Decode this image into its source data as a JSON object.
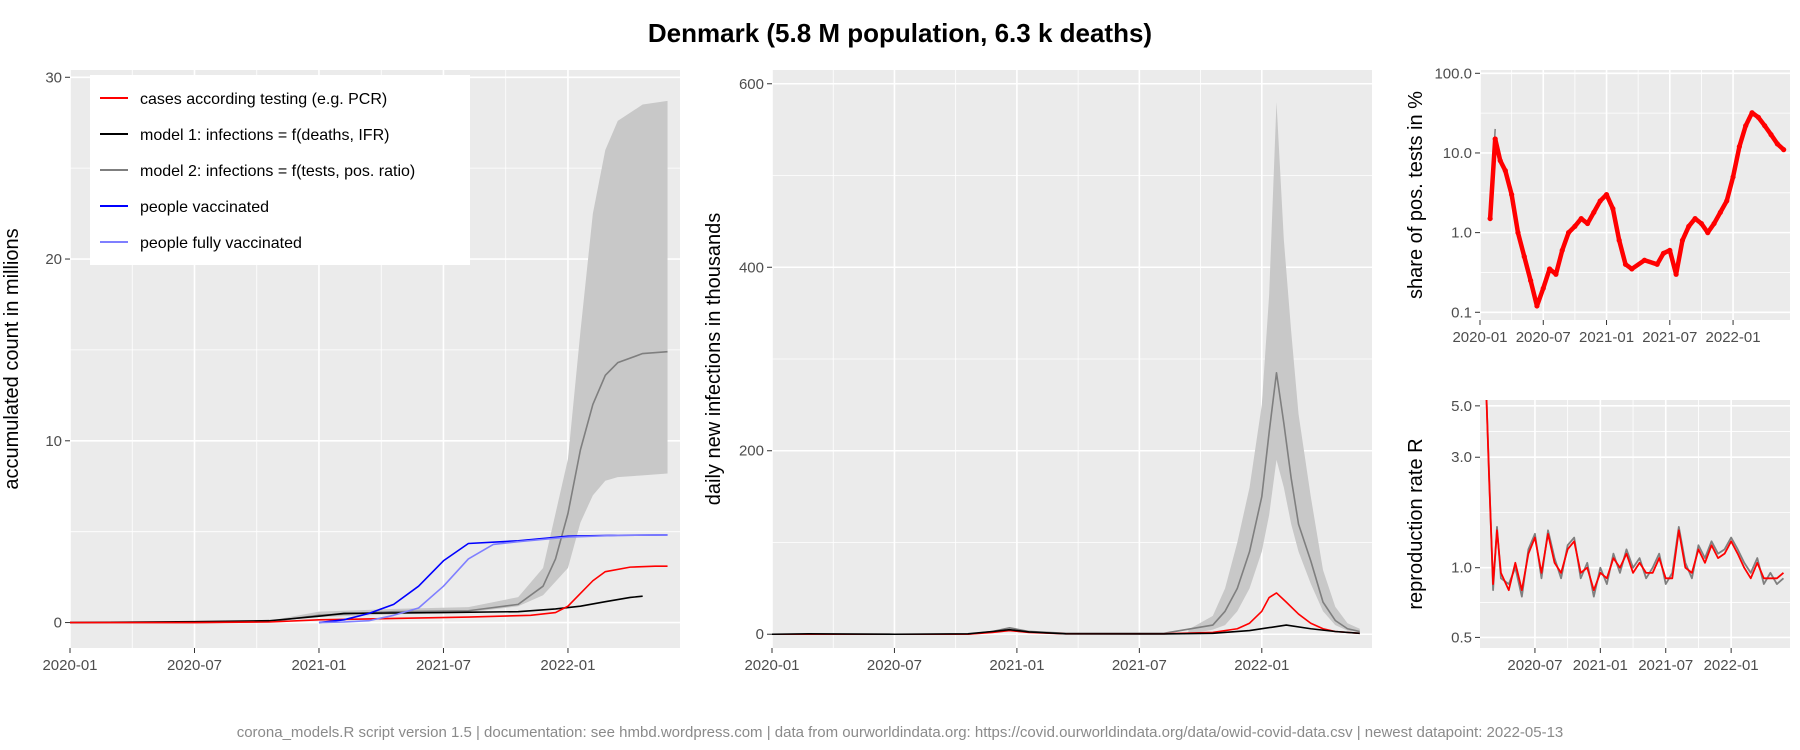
{
  "title": "Denmark (5.8 M population, 6.3 k deaths)",
  "caption": "corona_models.R script version 1.5 | documentation: see hmbd.wordpress.com | data from ourworldindata.org: https://covid.ourworldindata.org/data/owid-covid-data.csv | newest datapoint: 2022-05-13",
  "colors": {
    "panel_bg": "#EBEBEB",
    "grid": "#FFFFFF",
    "cases": "#FF0000",
    "model1": "#000000",
    "model2": "#7F7F7F",
    "model2_band": "#C8C8C8",
    "vaccinated": "#0000FF",
    "fully_vaccinated": "#7F7FFF"
  },
  "chart_data": [
    {
      "type": "line",
      "ylabel": "accumulated count in millions",
      "xlabel": "",
      "x_ticks": [
        "2020-01",
        "2020-07",
        "2021-01",
        "2021-07",
        "2022-01"
      ],
      "y_ticks": [
        "0",
        "10",
        "20",
        "30"
      ],
      "xlim": [
        2020.0,
        2022.45
      ],
      "ylim": [
        -1.4,
        30.4
      ],
      "legend": [
        {
          "key": "cases",
          "label": "cases according testing (e.g. PCR)"
        },
        {
          "key": "model1",
          "label": "model 1: infections = f(deaths, IFR)"
        },
        {
          "key": "model2",
          "label": "model 2: infections = f(tests, pos. ratio)"
        },
        {
          "key": "vaccinated",
          "label": "people vaccinated"
        },
        {
          "key": "fully_vaccinated",
          "label": "people fully vaccinated"
        }
      ],
      "legend_position": "top-left",
      "band": {
        "x": [
          2020.8,
          2021.0,
          2021.3,
          2021.6,
          2021.8,
          2021.9,
          2022.0,
          2022.05,
          2022.1,
          2022.15,
          2022.2,
          2022.3,
          2022.4
        ],
        "lower": [
          0.05,
          0.3,
          0.45,
          0.55,
          0.9,
          1.5,
          3.0,
          5.5,
          7.0,
          7.8,
          8.0,
          8.1,
          8.2
        ],
        "upper": [
          0.1,
          0.6,
          0.75,
          0.85,
          1.4,
          3.0,
          9.0,
          16.0,
          22.5,
          26.0,
          27.6,
          28.5,
          28.7
        ]
      },
      "series": [
        {
          "key": "model2",
          "x": [
            2020.0,
            2020.5,
            2020.8,
            2021.0,
            2021.3,
            2021.6,
            2021.8,
            2021.9,
            2021.95,
            2022.0,
            2022.05,
            2022.1,
            2022.15,
            2022.2,
            2022.3,
            2022.4
          ],
          "y": [
            0.0,
            0.0,
            0.05,
            0.4,
            0.6,
            0.65,
            1.0,
            2.0,
            3.5,
            6.0,
            9.5,
            12.0,
            13.6,
            14.3,
            14.8,
            14.9
          ]
        },
        {
          "key": "model1",
          "x": [
            2020.0,
            2020.5,
            2020.8,
            2021.0,
            2021.1,
            2021.5,
            2021.8,
            2021.95,
            2022.05,
            2022.15,
            2022.25,
            2022.3
          ],
          "y": [
            0.0,
            0.05,
            0.1,
            0.35,
            0.5,
            0.55,
            0.6,
            0.75,
            0.9,
            1.15,
            1.38,
            1.45
          ]
        },
        {
          "key": "cases",
          "x": [
            2020.0,
            2020.5,
            2020.8,
            2021.0,
            2021.2,
            2021.6,
            2021.85,
            2021.95,
            2022.0,
            2022.05,
            2022.1,
            2022.15,
            2022.25,
            2022.35,
            2022.4
          ],
          "y": [
            0.0,
            0.0,
            0.03,
            0.15,
            0.2,
            0.3,
            0.4,
            0.55,
            0.9,
            1.6,
            2.3,
            2.8,
            3.05,
            3.1,
            3.1
          ]
        },
        {
          "key": "vaccinated",
          "x": [
            2021.0,
            2021.1,
            2021.2,
            2021.3,
            2021.4,
            2021.5,
            2021.6,
            2021.8,
            2022.0,
            2022.2,
            2022.4
          ],
          "y": [
            0.0,
            0.15,
            0.5,
            1.0,
            2.0,
            3.4,
            4.35,
            4.5,
            4.75,
            4.8,
            4.82
          ]
        },
        {
          "key": "fully_vaccinated",
          "x": [
            2021.0,
            2021.1,
            2021.2,
            2021.3,
            2021.4,
            2021.5,
            2021.6,
            2021.7,
            2021.8,
            2022.0,
            2022.2,
            2022.4
          ],
          "y": [
            0.0,
            0.03,
            0.1,
            0.4,
            0.8,
            2.0,
            3.5,
            4.3,
            4.45,
            4.7,
            4.8,
            4.82
          ]
        }
      ]
    },
    {
      "type": "line",
      "ylabel": "daily new infections in thousands",
      "xlabel": "",
      "x_ticks": [
        "2020-01",
        "2020-07",
        "2021-01",
        "2021-07",
        "2022-01"
      ],
      "y_ticks": [
        "0",
        "200",
        "400",
        "600"
      ],
      "xlim": [
        2020.0,
        2022.45
      ],
      "ylim": [
        -15,
        615
      ],
      "band": {
        "x": [
          2021.7,
          2021.8,
          2021.85,
          2021.9,
          2021.95,
          2022.0,
          2022.03,
          2022.06,
          2022.09,
          2022.12,
          2022.15,
          2022.2,
          2022.25,
          2022.3,
          2022.35,
          2022.4
        ],
        "lower": [
          0,
          5,
          10,
          25,
          50,
          90,
          130,
          190,
          160,
          120,
          90,
          55,
          25,
          10,
          4,
          2
        ],
        "upper": [
          5,
          20,
          50,
          100,
          160,
          250,
          370,
          580,
          430,
          330,
          240,
          150,
          70,
          30,
          12,
          6
        ]
      },
      "series": [
        {
          "key": "model2",
          "x": [
            2020.0,
            2020.8,
            2020.9,
            2020.97,
            2021.05,
            2021.2,
            2021.6,
            2021.8,
            2021.85,
            2021.9,
            2021.95,
            2022.0,
            2022.03,
            2022.06,
            2022.09,
            2022.12,
            2022.15,
            2022.2,
            2022.25,
            2022.3,
            2022.35,
            2022.4
          ],
          "y": [
            0,
            0,
            3,
            7,
            3,
            1,
            1,
            10,
            25,
            50,
            90,
            150,
            220,
            285,
            230,
            170,
            120,
            80,
            35,
            15,
            6,
            3
          ]
        },
        {
          "key": "cases",
          "x": [
            2020.0,
            2020.8,
            2020.9,
            2020.97,
            2021.05,
            2021.2,
            2021.6,
            2021.8,
            2021.9,
            2021.95,
            2022.0,
            2022.03,
            2022.06,
            2022.1,
            2022.15,
            2022.2,
            2022.25,
            2022.3,
            2022.4
          ],
          "y": [
            0,
            0,
            2,
            4,
            2,
            0.5,
            0.5,
            2,
            6,
            12,
            25,
            40,
            45,
            35,
            22,
            12,
            6,
            3,
            1
          ]
        },
        {
          "key": "model1",
          "x": [
            2020.0,
            2020.15,
            2020.25,
            2020.5,
            2020.8,
            2020.9,
            2020.97,
            2021.05,
            2021.2,
            2021.6,
            2021.8,
            2021.95,
            2022.05,
            2022.1,
            2022.2,
            2022.3,
            2022.4
          ],
          "y": [
            0,
            0.5,
            0.3,
            0,
            0.5,
            3,
            5,
            2.5,
            0.5,
            0.3,
            1,
            4,
            8,
            10,
            6,
            3,
            1
          ]
        }
      ]
    },
    {
      "type": "scatter",
      "scale": "log",
      "ylabel": "share of pos. tests in %",
      "xlabel": "",
      "x_ticks": [
        "2020-01",
        "2020-07",
        "2021-01",
        "2021-07",
        "2022-01"
      ],
      "y_ticks": [
        "0.1",
        "1.0",
        "10.0",
        "100.0"
      ],
      "xlim": [
        2020.0,
        2022.45
      ],
      "ylim": [
        0.08,
        110
      ],
      "x": [
        2020.08,
        2020.12,
        2020.16,
        2020.2,
        2020.25,
        2020.3,
        2020.35,
        2020.4,
        2020.45,
        2020.5,
        2020.55,
        2020.6,
        2020.65,
        2020.7,
        2020.75,
        2020.8,
        2020.85,
        2020.9,
        2020.95,
        2021.0,
        2021.05,
        2021.1,
        2021.15,
        2021.2,
        2021.3,
        2021.4,
        2021.45,
        2021.5,
        2021.55,
        2021.6,
        2021.65,
        2021.7,
        2021.75,
        2021.8,
        2021.85,
        2021.9,
        2021.95,
        2022.0,
        2022.05,
        2022.1,
        2022.15,
        2022.2,
        2022.25,
        2022.3,
        2022.35,
        2022.4
      ],
      "y": [
        1.5,
        15,
        8,
        6,
        3,
        1.0,
        0.5,
        0.25,
        0.12,
        0.2,
        0.35,
        0.3,
        0.6,
        1.0,
        1.2,
        1.5,
        1.3,
        1.8,
        2.5,
        3.0,
        2.0,
        0.8,
        0.4,
        0.35,
        0.45,
        0.4,
        0.55,
        0.6,
        0.3,
        0.8,
        1.2,
        1.5,
        1.3,
        1.0,
        1.3,
        1.8,
        2.5,
        5,
        12,
        22,
        32,
        28,
        22,
        17,
        13,
        11
      ]
    },
    {
      "type": "line",
      "scale": "log",
      "ylabel": "reproduction rate R",
      "xlabel": "",
      "x_ticks": [
        "2020-07",
        "2021-01",
        "2021-07",
        "2022-01"
      ],
      "y_ticks": [
        "0.5",
        "1.0",
        "3.0",
        "5.0"
      ],
      "xlim": [
        2020.08,
        2022.45
      ],
      "ylim": [
        0.45,
        5.3
      ],
      "series": [
        {
          "key": "model2",
          "x": [
            2020.13,
            2020.15,
            2020.18,
            2020.21,
            2020.24,
            2020.3,
            2020.35,
            2020.4,
            2020.45,
            2020.5,
            2020.55,
            2020.6,
            2020.65,
            2020.7,
            2020.75,
            2020.8,
            2020.85,
            2020.9,
            2020.95,
            2021.0,
            2021.05,
            2021.1,
            2021.15,
            2021.2,
            2021.25,
            2021.3,
            2021.35,
            2021.4,
            2021.45,
            2021.5,
            2021.55,
            2021.6,
            2021.65,
            2021.7,
            2021.75,
            2021.8,
            2021.85,
            2021.9,
            2021.95,
            2022.0,
            2022.05,
            2022.1,
            2022.15,
            2022.2,
            2022.25,
            2022.3,
            2022.35,
            2022.4
          ],
          "y": [
            5.3,
            2.5,
            0.8,
            1.5,
            0.9,
            0.85,
            1.0,
            0.75,
            1.2,
            1.4,
            0.9,
            1.45,
            1.1,
            0.9,
            1.25,
            1.35,
            0.9,
            1.05,
            0.75,
            1.0,
            0.85,
            1.15,
            0.95,
            1.2,
            1.0,
            1.1,
            0.9,
            1.0,
            1.15,
            0.85,
            0.95,
            1.5,
            1.05,
            0.9,
            1.25,
            1.1,
            1.3,
            1.15,
            1.2,
            1.35,
            1.2,
            1.05,
            0.95,
            1.1,
            0.85,
            0.95,
            0.85,
            0.9
          ]
        },
        {
          "key": "cases",
          "x": [
            2020.13,
            2020.15,
            2020.18,
            2020.21,
            2020.24,
            2020.3,
            2020.35,
            2020.4,
            2020.45,
            2020.5,
            2020.55,
            2020.6,
            2020.65,
            2020.7,
            2020.75,
            2020.8,
            2020.85,
            2020.9,
            2020.95,
            2021.0,
            2021.05,
            2021.1,
            2021.15,
            2021.2,
            2021.25,
            2021.3,
            2021.35,
            2021.4,
            2021.45,
            2021.5,
            2021.55,
            2021.6,
            2021.65,
            2021.7,
            2021.75,
            2021.8,
            2021.85,
            2021.9,
            2021.95,
            2022.0,
            2022.05,
            2022.1,
            2022.15,
            2022.2,
            2022.25,
            2022.3,
            2022.35,
            2022.4
          ],
          "y": [
            5.3,
            2.4,
            0.85,
            1.45,
            0.95,
            0.8,
            1.05,
            0.8,
            1.15,
            1.35,
            0.95,
            1.4,
            1.05,
            0.95,
            1.2,
            1.3,
            0.95,
            1.0,
            0.8,
            0.95,
            0.9,
            1.1,
            1.0,
            1.15,
            0.95,
            1.05,
            0.95,
            0.95,
            1.1,
            0.9,
            0.9,
            1.45,
            1.0,
            0.95,
            1.2,
            1.05,
            1.25,
            1.1,
            1.15,
            1.3,
            1.15,
            1.0,
            0.9,
            1.05,
            0.9,
            0.9,
            0.9,
            0.95
          ]
        }
      ]
    }
  ]
}
